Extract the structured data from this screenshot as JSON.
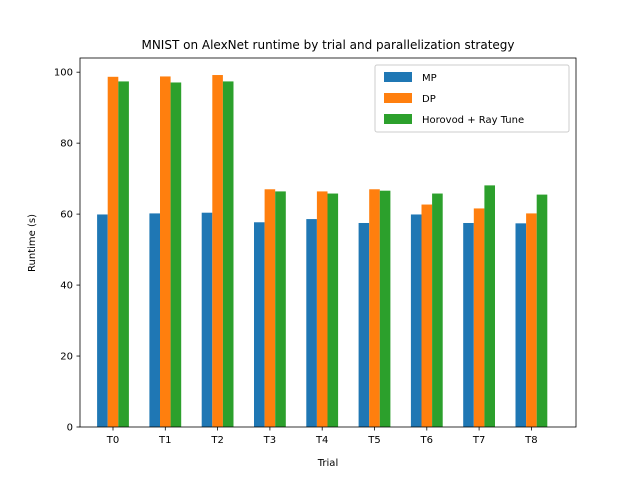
{
  "chart_data": {
    "type": "bar",
    "title": "MNIST on AlexNet runtime by trial and parallelization strategy",
    "xlabel": "Trial",
    "ylabel": "Runtime (s)",
    "categories": [
      "T0",
      "T1",
      "T2",
      "T3",
      "T4",
      "T5",
      "T6",
      "T7",
      "T8"
    ],
    "ylim": [
      0,
      104
    ],
    "yticks": [
      0,
      20,
      40,
      60,
      80,
      100
    ],
    "grid": false,
    "legend_position": "top-right",
    "series": [
      {
        "name": "MP",
        "color": "#1f77b4",
        "values": [
          59.9,
          60.2,
          60.4,
          57.7,
          58.6,
          57.5,
          59.9,
          57.5,
          57.4
        ]
      },
      {
        "name": "DP",
        "color": "#ff7f0e",
        "values": [
          98.7,
          98.8,
          99.2,
          67.0,
          66.4,
          67.0,
          62.7,
          61.6,
          60.2
        ]
      },
      {
        "name": "Horovod + Ray Tune",
        "color": "#2ca02c",
        "values": [
          97.4,
          97.1,
          97.4,
          66.4,
          65.8,
          66.6,
          65.8,
          68.1,
          65.5
        ]
      }
    ]
  }
}
